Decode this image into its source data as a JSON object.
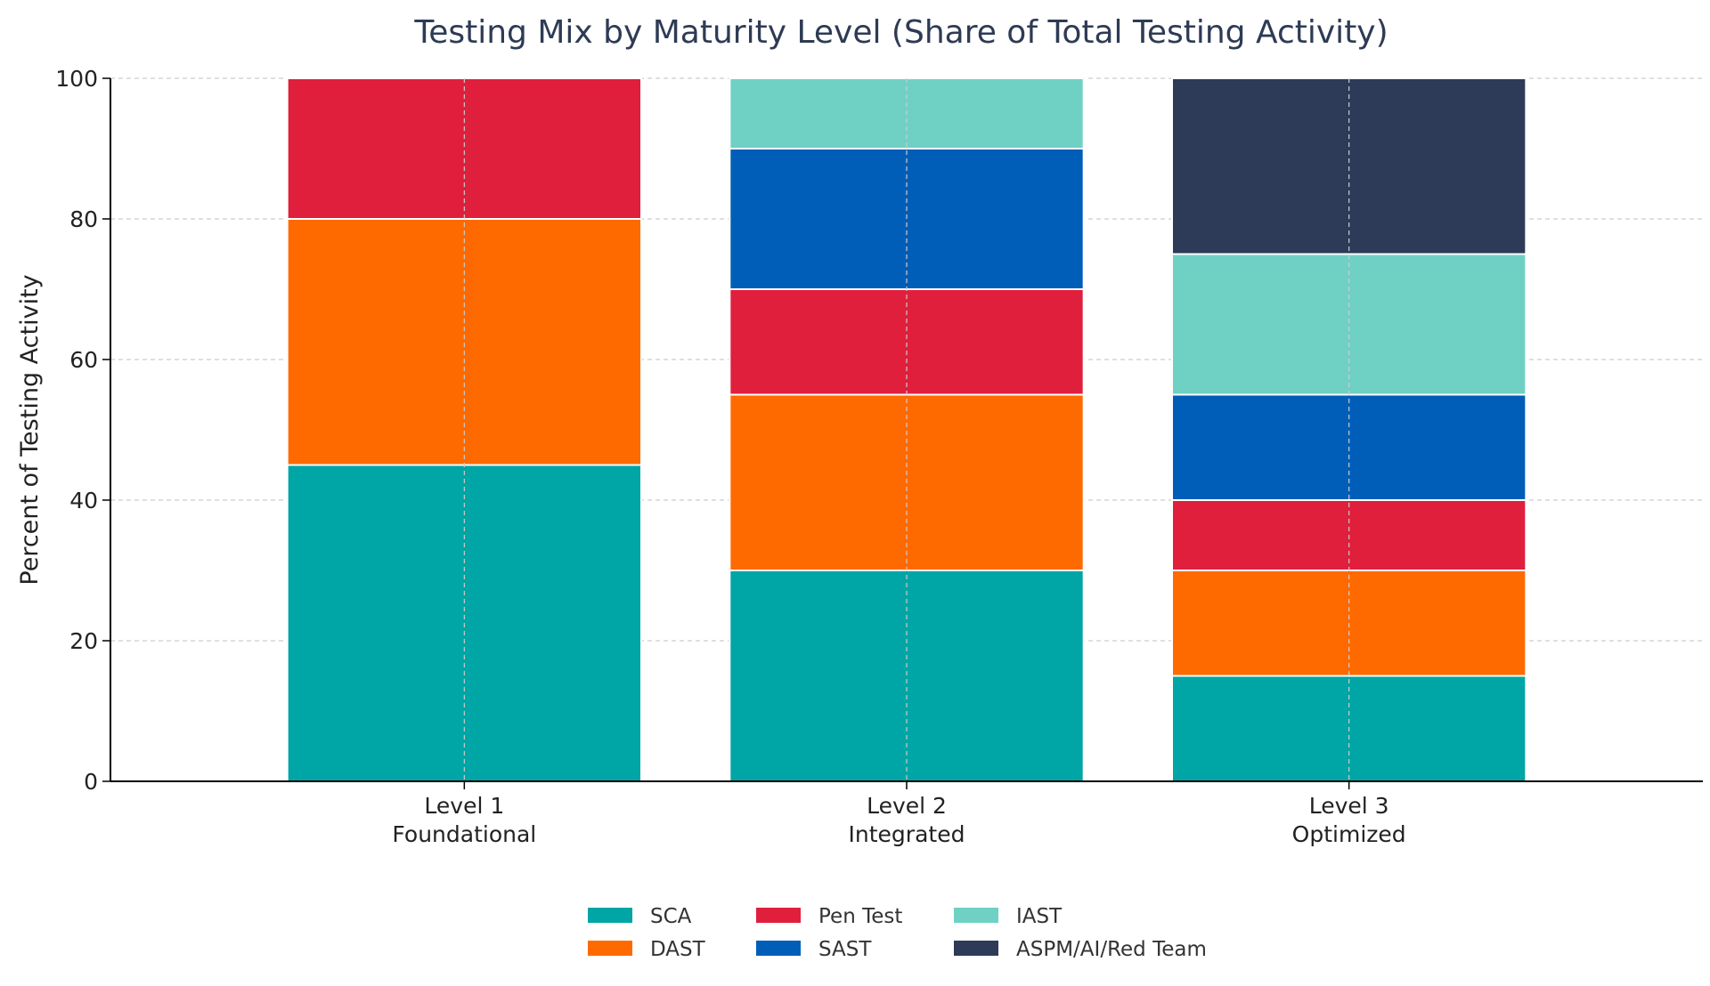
{
  "chart_data": {
    "type": "bar",
    "stacked": true,
    "title": "Testing Mix by Maturity Level (Share of Total Testing Activity)",
    "xlabel": "",
    "ylabel": "Percent of Testing Activity",
    "ylim": [
      0,
      100
    ],
    "yticks": [
      "0",
      "20",
      "40",
      "60",
      "80",
      "100"
    ],
    "grid": true,
    "categories": [
      [
        "Level 1",
        "Foundational"
      ],
      [
        "Level 2",
        "Integrated"
      ],
      [
        "Level 3",
        "Optimized"
      ]
    ],
    "series": [
      {
        "name": "SCA",
        "color": "#00a5a5",
        "values": [
          45,
          30,
          15
        ]
      },
      {
        "name": "DAST",
        "color": "#ff6a00",
        "values": [
          35,
          25,
          15
        ]
      },
      {
        "name": "Pen Test",
        "color": "#e01f3d",
        "values": [
          20,
          15,
          10
        ]
      },
      {
        "name": "SAST",
        "color": "#005eb8",
        "values": [
          0,
          20,
          15
        ]
      },
      {
        "name": "IAST",
        "color": "#6fd1c4",
        "values": [
          0,
          10,
          20
        ]
      },
      {
        "name": "ASPM/AI/Red Team",
        "color": "#2d3a58",
        "values": [
          0,
          0,
          25
        ]
      }
    ],
    "legend": {
      "placement": "bottom-center",
      "columns": 3,
      "order": [
        "SCA",
        "DAST",
        "Pen Test",
        "SAST",
        "IAST",
        "ASPM/AI/Red Team"
      ]
    },
    "colors": {
      "title": "#2e3b55",
      "text": "#222222",
      "grid": "#cccccc",
      "axis": "#000000"
    }
  }
}
